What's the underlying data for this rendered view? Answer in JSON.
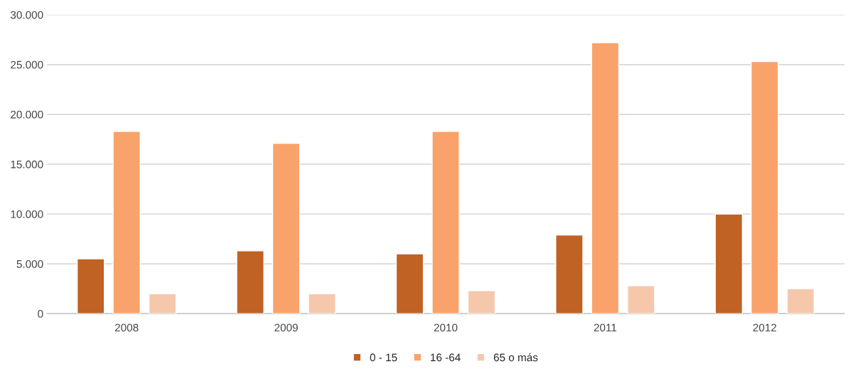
{
  "chart_data": {
    "type": "bar",
    "categories": [
      "2008",
      "2009",
      "2010",
      "2011",
      "2012"
    ],
    "series": [
      {
        "name": "0 - 15",
        "color": "#bf6224",
        "values": [
          5500,
          6300,
          6000,
          7900,
          10000
        ]
      },
      {
        "name": "16 -64",
        "color": "#f9a26a",
        "values": [
          18300,
          17100,
          18300,
          27200,
          25300
        ]
      },
      {
        "name": "65 o más",
        "color": "#f5c8ac",
        "values": [
          2000,
          2000,
          2300,
          2800,
          2500
        ]
      }
    ],
    "ylim": [
      0,
      30000
    ],
    "yticks": [
      {
        "value": 0,
        "label": "0"
      },
      {
        "value": 5000,
        "label": "5.000"
      },
      {
        "value": 10000,
        "label": "10.000"
      },
      {
        "value": 15000,
        "label": "15.000"
      },
      {
        "value": 20000,
        "label": "20.000"
      },
      {
        "value": 25000,
        "label": "25.000"
      },
      {
        "value": 30000,
        "label": "30.000"
      }
    ],
    "grid": "y",
    "legend": "bottom"
  }
}
